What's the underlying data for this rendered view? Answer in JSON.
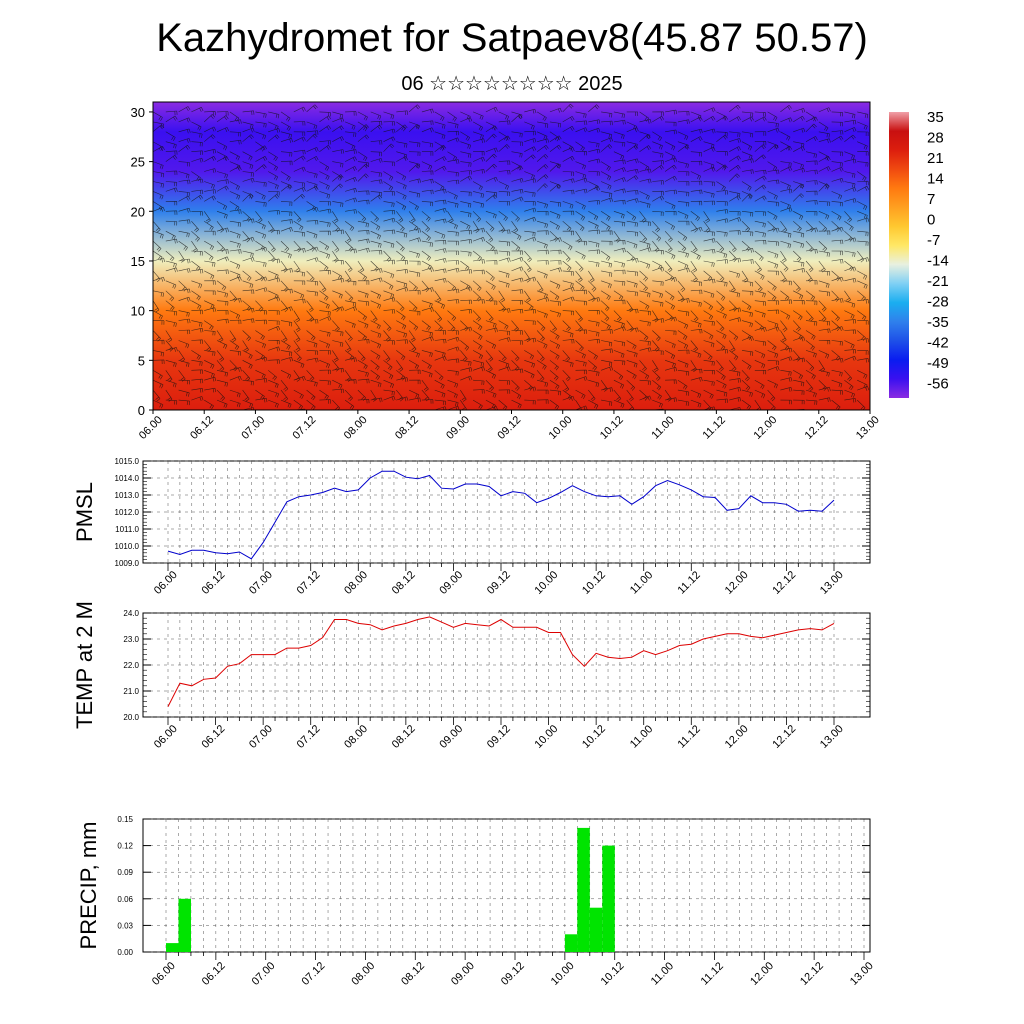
{
  "title": "Kazhydromet for Satpaev8(45.87 50.57)",
  "subtitle": "06 ☆☆☆☆☆☆☆☆ 2025",
  "time_ticks": [
    "06.00",
    "06.12",
    "07.00",
    "07.12",
    "08.00",
    "08.12",
    "09.00",
    "09.12",
    "10.00",
    "10.12",
    "11.00",
    "11.12",
    "12.00",
    "12.12",
    "13.00"
  ],
  "chart_data": [
    {
      "type": "heatmap",
      "ylim": [
        0,
        30
      ],
      "yticks": [
        0,
        5,
        10,
        15,
        20,
        25,
        30
      ],
      "xticks": [
        "06.00",
        "06.12",
        "07.00",
        "07.12",
        "08.00",
        "08.12",
        "09.00",
        "09.12",
        "10.00",
        "10.12",
        "11.00",
        "11.12",
        "12.00",
        "12.12",
        "13.00"
      ],
      "colorbar_labels": [
        "35",
        "28",
        "21",
        "14",
        "7",
        "0",
        "-7",
        "-14",
        "-21",
        "-28",
        "-35",
        "-42",
        "-49",
        "-56"
      ],
      "colorbar_range": [
        -63,
        42
      ],
      "temperature_by_level": [
        {
          "level": 0,
          "value": 28
        },
        {
          "level": 5,
          "value": 24
        },
        {
          "level": 10,
          "value": 14
        },
        {
          "level": 15,
          "value": -12
        },
        {
          "level": 20,
          "value": -35
        },
        {
          "level": 24,
          "value": -58
        },
        {
          "level": 28,
          "value": -56
        },
        {
          "level": 31,
          "value": -63
        }
      ],
      "wind_barbs": true,
      "colors": {
        "hot": "#d01010",
        "warm": "#ff8800",
        "mid": "#ffe85a",
        "cool": "#22bbee",
        "cold": "#1010e6",
        "coldest": "#7a20f0"
      }
    },
    {
      "type": "line",
      "ylabel": "PMSL",
      "ylim": [
        1009.0,
        1015.0
      ],
      "yticks": [
        "1009.0",
        "1010.0",
        "1011.0",
        "1012.0",
        "1013.0",
        "1014.0",
        "1015.0"
      ],
      "xticks": [
        "06.00",
        "06.12",
        "07.00",
        "07.12",
        "08.00",
        "08.12",
        "09.00",
        "09.12",
        "10.00",
        "10.12",
        "11.00",
        "11.12",
        "12.00",
        "12.12",
        "13.00"
      ],
      "series": [
        {
          "color": "#0000cc",
          "values": [
            1009.7,
            1009.5,
            1009.75,
            1009.75,
            1009.6,
            1009.55,
            1009.65,
            1009.25,
            1010.2,
            1011.4,
            1012.6,
            1012.9,
            1013.0,
            1013.15,
            1013.4,
            1013.2,
            1013.3,
            1014.0,
            1014.4,
            1014.4,
            1014.05,
            1013.95,
            1014.15,
            1013.4,
            1013.35,
            1013.65,
            1013.65,
            1013.5,
            1012.95,
            1013.2,
            1013.1,
            1012.55,
            1012.8,
            1013.15,
            1013.55,
            1013.2,
            1012.95,
            1012.9,
            1012.95,
            1012.45,
            1012.9,
            1013.55,
            1013.85,
            1013.6,
            1013.3,
            1012.9,
            1012.85,
            1012.1,
            1012.2,
            1012.95,
            1012.55,
            1012.55,
            1012.45,
            1012.05,
            1012.1,
            1012.05,
            1012.7
          ]
        }
      ]
    },
    {
      "type": "line",
      "ylabel": "TEMP at 2 M",
      "ylim": [
        20.0,
        24.0
      ],
      "yticks": [
        "20.0",
        "21.0",
        "22.0",
        "23.0",
        "24.0"
      ],
      "xticks": [
        "06.00",
        "06.12",
        "07.00",
        "07.12",
        "08.00",
        "08.12",
        "09.00",
        "09.12",
        "10.00",
        "10.12",
        "11.00",
        "11.12",
        "12.00",
        "12.12",
        "13.00"
      ],
      "series": [
        {
          "color": "#dd0000",
          "values": [
            20.4,
            21.3,
            21.2,
            21.45,
            21.5,
            21.95,
            22.05,
            22.4,
            22.4,
            22.4,
            22.65,
            22.65,
            22.75,
            23.05,
            23.75,
            23.75,
            23.6,
            23.55,
            23.35,
            23.5,
            23.6,
            23.75,
            23.85,
            23.65,
            23.45,
            23.6,
            23.55,
            23.5,
            23.75,
            23.45,
            23.45,
            23.45,
            23.25,
            23.25,
            22.4,
            21.95,
            22.45,
            22.3,
            22.25,
            22.3,
            22.55,
            22.4,
            22.55,
            22.75,
            22.8,
            23.0,
            23.1,
            23.2,
            23.2,
            23.1,
            23.05,
            23.15,
            23.25,
            23.35,
            23.4,
            23.35,
            23.6
          ]
        }
      ]
    },
    {
      "type": "bar",
      "ylabel": "PRECIP, mm",
      "ylim": [
        0.0,
        0.15
      ],
      "yticks": [
        "0.00",
        "0.03",
        "0.06",
        "0.09",
        "0.12",
        "0.15"
      ],
      "xticks": [
        "06.00",
        "06.12",
        "07.00",
        "07.12",
        "08.00",
        "08.12",
        "09.00",
        "09.12",
        "10.00",
        "10.12",
        "11.00",
        "11.12",
        "12.00",
        "12.12",
        "13.00"
      ],
      "color": "#00e400",
      "bars": [
        {
          "time": "06.03",
          "value": 0.01
        },
        {
          "time": "06.06",
          "value": 0.06
        },
        {
          "time": "10.03",
          "value": 0.02
        },
        {
          "time": "10.06",
          "value": 0.14
        },
        {
          "time": "10.09",
          "value": 0.05
        },
        {
          "time": "10.12",
          "value": 0.12
        }
      ]
    }
  ]
}
